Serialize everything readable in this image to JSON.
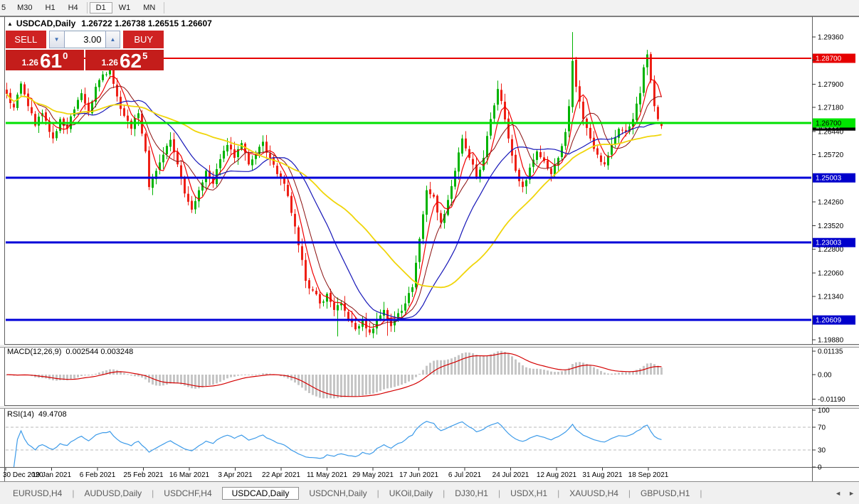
{
  "toolbar": {
    "periods": [
      {
        "label": "5",
        "active": false,
        "cut": true
      },
      {
        "label": "M30",
        "active": false
      },
      {
        "label": "H1",
        "active": false
      },
      {
        "label": "H4",
        "active": false
      },
      {
        "label": "D1",
        "active": true
      },
      {
        "label": "W1",
        "active": false
      },
      {
        "label": "MN",
        "active": false
      }
    ]
  },
  "chart": {
    "collapse_icon": "▲",
    "title_symbol": "USDCAD,Daily",
    "title_ohlc": "1.26722 1.26738 1.26515 1.26607"
  },
  "trade_panel": {
    "sell_label": "SELL",
    "buy_label": "BUY",
    "volume": "3.00",
    "down_arrow": "▼",
    "up_arrow": "▲",
    "sell_price": {
      "small": "1.26",
      "big": "61",
      "sup": "0"
    },
    "buy_price": {
      "small": "1.26",
      "big": "62",
      "sup": "5"
    }
  },
  "indicators": {
    "macd": {
      "name": "MACD(12,26,9)",
      "values": "0.002544 0.003248"
    },
    "rsi": {
      "name": "RSI(14)",
      "value": "49.4708"
    }
  },
  "chart_data": {
    "type": "candlestick",
    "symbol": "USDCAD",
    "timeframe": "Daily",
    "last_bar_ohlc": {
      "open": 1.26722,
      "high": 1.26738,
      "low": 1.26515,
      "close": 1.26607
    },
    "date_labels": [
      "30 Dec 2020",
      "19 Jan 2021",
      "6 Feb 2021",
      "25 Feb 2021",
      "16 Mar 2021",
      "3 Apr 2021",
      "22 Apr 2021",
      "11 May 2021",
      "29 May 2021",
      "17 Jun 2021",
      "6 Jul 2021",
      "24 Jul 2021",
      "12 Aug 2021",
      "31 Aug 2021",
      "18 Sep 2021"
    ],
    "candle_count": 185,
    "close_anchors": [
      [
        0,
        1.276
      ],
      [
        2,
        1.2718
      ],
      [
        4,
        1.2792
      ],
      [
        6,
        1.2722
      ],
      [
        8,
        1.2662
      ],
      [
        10,
        1.27
      ],
      [
        13,
        1.2622
      ],
      [
        15,
        1.2682
      ],
      [
        17,
        1.2652
      ],
      [
        19,
        1.2712
      ],
      [
        21,
        1.2762
      ],
      [
        23,
        1.2702
      ],
      [
        25,
        1.2782
      ],
      [
        27,
        1.282
      ],
      [
        29,
        1.2838
      ],
      [
        31,
        1.2752
      ],
      [
        33,
        1.2692
      ],
      [
        35,
        1.2652
      ],
      [
        37,
        1.27
      ],
      [
        39,
        1.2582
      ],
      [
        40,
        1.2472
      ],
      [
        42,
        1.2522
      ],
      [
        44,
        1.2572
      ],
      [
        46,
        1.2618
      ],
      [
        48,
        1.2542
      ],
      [
        50,
        1.2452
      ],
      [
        52,
        1.2402
      ],
      [
        54,
        1.2462
      ],
      [
        56,
        1.2522
      ],
      [
        58,
        1.2482
      ],
      [
        60,
        1.2558
      ],
      [
        62,
        1.2602
      ],
      [
        64,
        1.2562
      ],
      [
        66,
        1.2608
      ],
      [
        68,
        1.2542
      ],
      [
        70,
        1.2572
      ],
      [
        72,
        1.2612
      ],
      [
        74,
        1.2562
      ],
      [
        76,
        1.2512
      ],
      [
        78,
        1.2482
      ],
      [
        80,
        1.2392
      ],
      [
        82,
        1.2292
      ],
      [
        84,
        1.2182
      ],
      [
        86,
        1.2152
      ],
      [
        88,
        1.2112
      ],
      [
        90,
        1.2142
      ],
      [
        92,
        1.2092
      ],
      [
        94,
        1.2112
      ],
      [
        96,
        1.2062
      ],
      [
        98,
        1.2032
      ],
      [
        100,
        1.2062
      ],
      [
        102,
        1.2022
      ],
      [
        104,
        1.2062
      ],
      [
        106,
        1.2092
      ],
      [
        108,
        1.2042
      ],
      [
        110,
        1.2082
      ],
      [
        112,
        1.2112
      ],
      [
        114,
        1.2162
      ],
      [
        116,
        1.2312
      ],
      [
        118,
        1.2462
      ],
      [
        120,
        1.2442
      ],
      [
        122,
        1.2362
      ],
      [
        124,
        1.2432
      ],
      [
        126,
        1.2522
      ],
      [
        128,
        1.2622
      ],
      [
        130,
        1.2562
      ],
      [
        132,
        1.2502
      ],
      [
        134,
        1.2562
      ],
      [
        136,
        1.2682
      ],
      [
        138,
        1.2775
      ],
      [
        139,
        1.2738
      ],
      [
        141,
        1.2622
      ],
      [
        143,
        1.2522
      ],
      [
        145,
        1.2472
      ],
      [
        147,
        1.2532
      ],
      [
        149,
        1.2582
      ],
      [
        151,
        1.2552
      ],
      [
        153,
        1.2512
      ],
      [
        155,
        1.2562
      ],
      [
        157,
        1.2642
      ],
      [
        158,
        1.2722
      ],
      [
        159,
        1.2862
      ],
      [
        160,
        1.2782
      ],
      [
        162,
        1.2682
      ],
      [
        164,
        1.2622
      ],
      [
        166,
        1.2572
      ],
      [
        168,
        1.2542
      ],
      [
        170,
        1.2602
      ],
      [
        172,
        1.2652
      ],
      [
        174,
        1.2642
      ],
      [
        176,
        1.2682
      ],
      [
        178,
        1.2762
      ],
      [
        179,
        1.2842
      ],
      [
        180,
        1.2882
      ],
      [
        181,
        1.2802
      ],
      [
        182,
        1.2722
      ],
      [
        183,
        1.2682
      ],
      [
        184,
        1.26607
      ]
    ],
    "wick_overrides": {
      "29": {
        "h": 1.2846
      },
      "93": {
        "l": 1.201
      },
      "101": {
        "l": 1.2008
      },
      "104": {
        "l": 1.2016
      },
      "107": {
        "l": 1.2012
      },
      "138": {
        "h": 1.2801
      },
      "139": {
        "h": 1.2792
      },
      "159": {
        "h": 1.2951
      },
      "180": {
        "h": 1.2896
      }
    },
    "ohlc_overrides": {
      "184": {
        "o": 1.26722,
        "h": 1.26738,
        "l": 1.26515,
        "c": 1.26607
      }
    },
    "colors": {
      "up": "#00b300",
      "down": "#ee2016",
      "macd_bar": "#c6c6c6",
      "macd_line": "#d40000",
      "rsi_line": "#3d9be9",
      "rsi_level": "#b8b8b8"
    },
    "moving_averages": [
      {
        "name": "ma-fast",
        "period": 5,
        "color": "#f00000",
        "width": 1.2
      },
      {
        "name": "ma-medium",
        "period": 9,
        "color": "#8a1010",
        "width": 1
      },
      {
        "name": "ma-slow",
        "period": 20,
        "color": "#1717b8",
        "width": 1.2
      },
      {
        "name": "ma-slowest",
        "period": 42,
        "color": "#f0d50a",
        "width": 1.8
      }
    ],
    "price_ticks": [
      "1.29360",
      "1.28640",
      "1.27900",
      "1.27180",
      "1.26440",
      "1.25720",
      "1.24260",
      "1.23520",
      "1.22800",
      "1.22060",
      "1.21340",
      "1.19880"
    ],
    "hlines": [
      {
        "value": 1.287,
        "label": "1.28700",
        "color": "#e60000",
        "label_bg": "#e60000",
        "label_fg": "#ffffff",
        "width": 2
      },
      {
        "value": 1.267,
        "label": "1.26700",
        "color": "#00e000",
        "label_bg": "#00e400",
        "label_fg": "#000000",
        "width": 3
      },
      {
        "value": 1.25003,
        "label": "1.25003",
        "color": "#0000d8",
        "label_bg": "#0000cc",
        "label_fg": "#ffffff",
        "width": 3
      },
      {
        "value": 1.23003,
        "label": "1.23003",
        "color": "#0000d8",
        "label_bg": "#0000cc",
        "label_fg": "#ffffff",
        "width": 3
      },
      {
        "value": 1.20609,
        "label": "1.20609",
        "color": "#0000d8",
        "label_bg": "#0000cc",
        "label_fg": "#ffffff",
        "width": 3
      }
    ],
    "current_price_label": {
      "value": 1.26607,
      "label": "1.26607",
      "bg": "#000000",
      "fg": "#ffffff"
    },
    "macd_panel": {
      "params": [
        12,
        26,
        9
      ],
      "value": 0.002544,
      "signal": 0.003248,
      "axis": [
        {
          "label": "0.01135",
          "value": 0.01135
        },
        {
          "label": "0.00",
          "value": 0
        },
        {
          "label": "-0.01190",
          "value": -0.0119
        }
      ]
    },
    "rsi_panel": {
      "period": 14,
      "value": 49.4708,
      "levels": [
        70,
        30
      ],
      "axis": [
        {
          "label": "100",
          "value": 100
        },
        {
          "label": "70",
          "value": 70
        },
        {
          "label": "30",
          "value": 30
        },
        {
          "label": "0",
          "value": 0
        }
      ]
    },
    "y_range": {
      "top_price": 1.29733,
      "bottom_price": 1.19866
    }
  },
  "tabs": {
    "items": [
      {
        "label": "EURUSD,H4",
        "active": false
      },
      {
        "label": "AUDUSD,Daily",
        "active": false
      },
      {
        "label": "USDCHF,H4",
        "active": false
      },
      {
        "label": "USDCAD,Daily",
        "active": true
      },
      {
        "label": "USDCNH,Daily",
        "active": false
      },
      {
        "label": "UKOil,Daily",
        "active": false
      },
      {
        "label": "DJ30,H1",
        "active": false
      },
      {
        "label": "USDX,H1",
        "active": false
      },
      {
        "label": "XAUUSD,H4",
        "active": false
      },
      {
        "label": "GBPUSD,H1",
        "active": false
      }
    ],
    "scroll_left": "◄",
    "scroll_right": "►"
  }
}
